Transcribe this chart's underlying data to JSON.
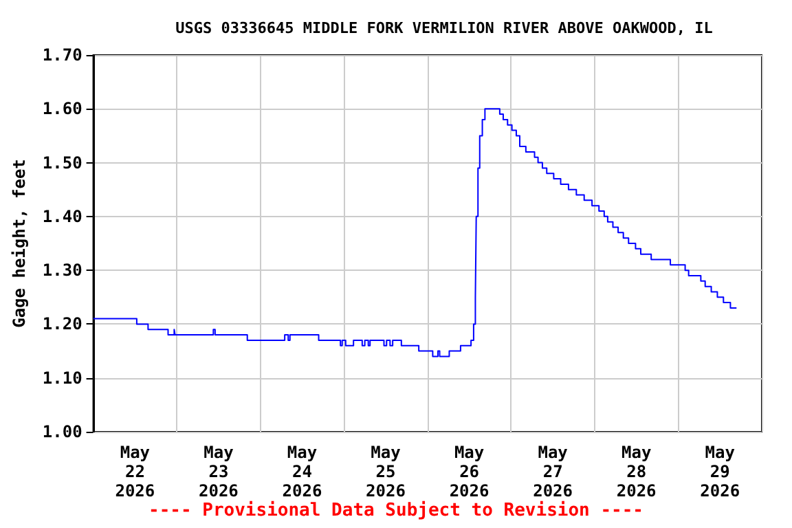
{
  "chart_data": {
    "type": "step",
    "title": "USGS 03336645 MIDDLE FORK VERMILION RIVER ABOVE OAKWOOD, IL",
    "ylabel": "Gage height, feet",
    "annotations": [
      "---- Provisional Data Subject to Revision ----"
    ],
    "xlim": [
      "2026-05-22T00:00",
      "2026-05-30T00:00"
    ],
    "xticks": [
      {
        "value": "2026-05-22T00:00",
        "label": null
      },
      {
        "value": "2026-05-22T12:00",
        "label": "May\n22\n2026"
      },
      {
        "value": "2026-05-23T00:00",
        "label": null
      },
      {
        "value": "2026-05-23T12:00",
        "label": "May\n23\n2026"
      },
      {
        "value": "2026-05-24T00:00",
        "label": null
      },
      {
        "value": "2026-05-24T12:00",
        "label": "May\n24\n2026"
      },
      {
        "value": "2026-05-25T00:00",
        "label": null
      },
      {
        "value": "2026-05-25T12:00",
        "label": "May\n25\n2026"
      },
      {
        "value": "2026-05-26T00:00",
        "label": null
      },
      {
        "value": "2026-05-26T12:00",
        "label": "May\n26\n2026"
      },
      {
        "value": "2026-05-27T00:00",
        "label": null
      },
      {
        "value": "2026-05-27T12:00",
        "label": "May\n27\n2026"
      },
      {
        "value": "2026-05-28T00:00",
        "label": null
      },
      {
        "value": "2026-05-28T12:00",
        "label": "May\n28\n2026"
      },
      {
        "value": "2026-05-29T00:00",
        "label": null
      },
      {
        "value": "2026-05-29T12:00",
        "label": "May\n29\n2026"
      },
      {
        "value": "2026-05-30T00:00",
        "label": null
      }
    ],
    "ylim": [
      1.0,
      1.7
    ],
    "yticks": [
      {
        "value": 1.0,
        "label": "1.00"
      },
      {
        "value": 1.1,
        "label": "1.10"
      },
      {
        "value": 1.2,
        "label": "1.20"
      },
      {
        "value": 1.3,
        "label": "1.30"
      },
      {
        "value": 1.4,
        "label": "1.40"
      },
      {
        "value": 1.5,
        "label": "1.50"
      },
      {
        "value": 1.6,
        "label": "1.60"
      },
      {
        "value": 1.7,
        "label": "1.70"
      }
    ],
    "grid": true,
    "marker": "none",
    "line_style": "solid",
    "series": [
      {
        "color": "#0000ff",
        "x": [
          "2026-05-22T00:00",
          "2026-05-22T12:30",
          "2026-05-22T15:45",
          "2026-05-22T21:30",
          "2026-05-22T23:15",
          "2026-05-22T23:30",
          "2026-05-23T10:30",
          "2026-05-23T11:00",
          "2026-05-23T20:15",
          "2026-05-24T07:00",
          "2026-05-24T08:00",
          "2026-05-24T08:30",
          "2026-05-24T16:45",
          "2026-05-24T23:00",
          "2026-05-24T23:30",
          "2026-05-25T00:30",
          "2026-05-25T02:45",
          "2026-05-25T05:15",
          "2026-05-25T06:00",
          "2026-05-25T07:00",
          "2026-05-25T07:30",
          "2026-05-25T11:30",
          "2026-05-25T12:15",
          "2026-05-25T13:15",
          "2026-05-25T14:00",
          "2026-05-25T16:30",
          "2026-05-25T21:30",
          "2026-05-26T01:30",
          "2026-05-26T03:00",
          "2026-05-26T03:30",
          "2026-05-26T06:15",
          "2026-05-26T09:30",
          "2026-05-26T12:30",
          "2026-05-26T13:15",
          "2026-05-26T13:45",
          "2026-05-26T14:00",
          "2026-05-26T14:30",
          "2026-05-26T15:00",
          "2026-05-26T15:45",
          "2026-05-26T16:30",
          "2026-05-26T20:45",
          "2026-05-26T21:45",
          "2026-05-26T23:00",
          "2026-05-27T00:15",
          "2026-05-27T01:30",
          "2026-05-27T02:30",
          "2026-05-27T04:15",
          "2026-05-27T06:45",
          "2026-05-27T07:45",
          "2026-05-27T09:00",
          "2026-05-27T10:15",
          "2026-05-27T12:15",
          "2026-05-27T14:15",
          "2026-05-27T16:30",
          "2026-05-27T18:45",
          "2026-05-27T21:00",
          "2026-05-27T23:15",
          "2026-05-28T01:15",
          "2026-05-28T02:45",
          "2026-05-28T03:45",
          "2026-05-28T05:15",
          "2026-05-28T06:45",
          "2026-05-28T08:15",
          "2026-05-28T09:45",
          "2026-05-28T11:45",
          "2026-05-28T13:15",
          "2026-05-28T16:15",
          "2026-05-28T21:45",
          "2026-05-29T02:00",
          "2026-05-29T03:00",
          "2026-05-29T06:30",
          "2026-05-29T07:45",
          "2026-05-29T09:30",
          "2026-05-29T11:15",
          "2026-05-29T13:00",
          "2026-05-29T15:00",
          "2026-05-29T16:45"
        ],
        "values": [
          1.21,
          1.2,
          1.19,
          1.18,
          1.19,
          1.18,
          1.19,
          1.18,
          1.17,
          1.18,
          1.17,
          1.18,
          1.17,
          1.16,
          1.17,
          1.16,
          1.17,
          1.16,
          1.17,
          1.16,
          1.17,
          1.16,
          1.17,
          1.16,
          1.17,
          1.16,
          1.15,
          1.14,
          1.15,
          1.14,
          1.15,
          1.16,
          1.17,
          1.2,
          1.25,
          1.4,
          1.49,
          1.55,
          1.58,
          1.6,
          1.59,
          1.58,
          1.57,
          1.56,
          1.55,
          1.53,
          1.52,
          1.51,
          1.5,
          1.49,
          1.48,
          1.47,
          1.46,
          1.45,
          1.44,
          1.43,
          1.42,
          1.41,
          1.4,
          1.39,
          1.38,
          1.37,
          1.36,
          1.35,
          1.34,
          1.33,
          1.32,
          1.31,
          1.3,
          1.29,
          1.28,
          1.27,
          1.26,
          1.25,
          1.24,
          1.23,
          1.23
        ]
      }
    ]
  }
}
